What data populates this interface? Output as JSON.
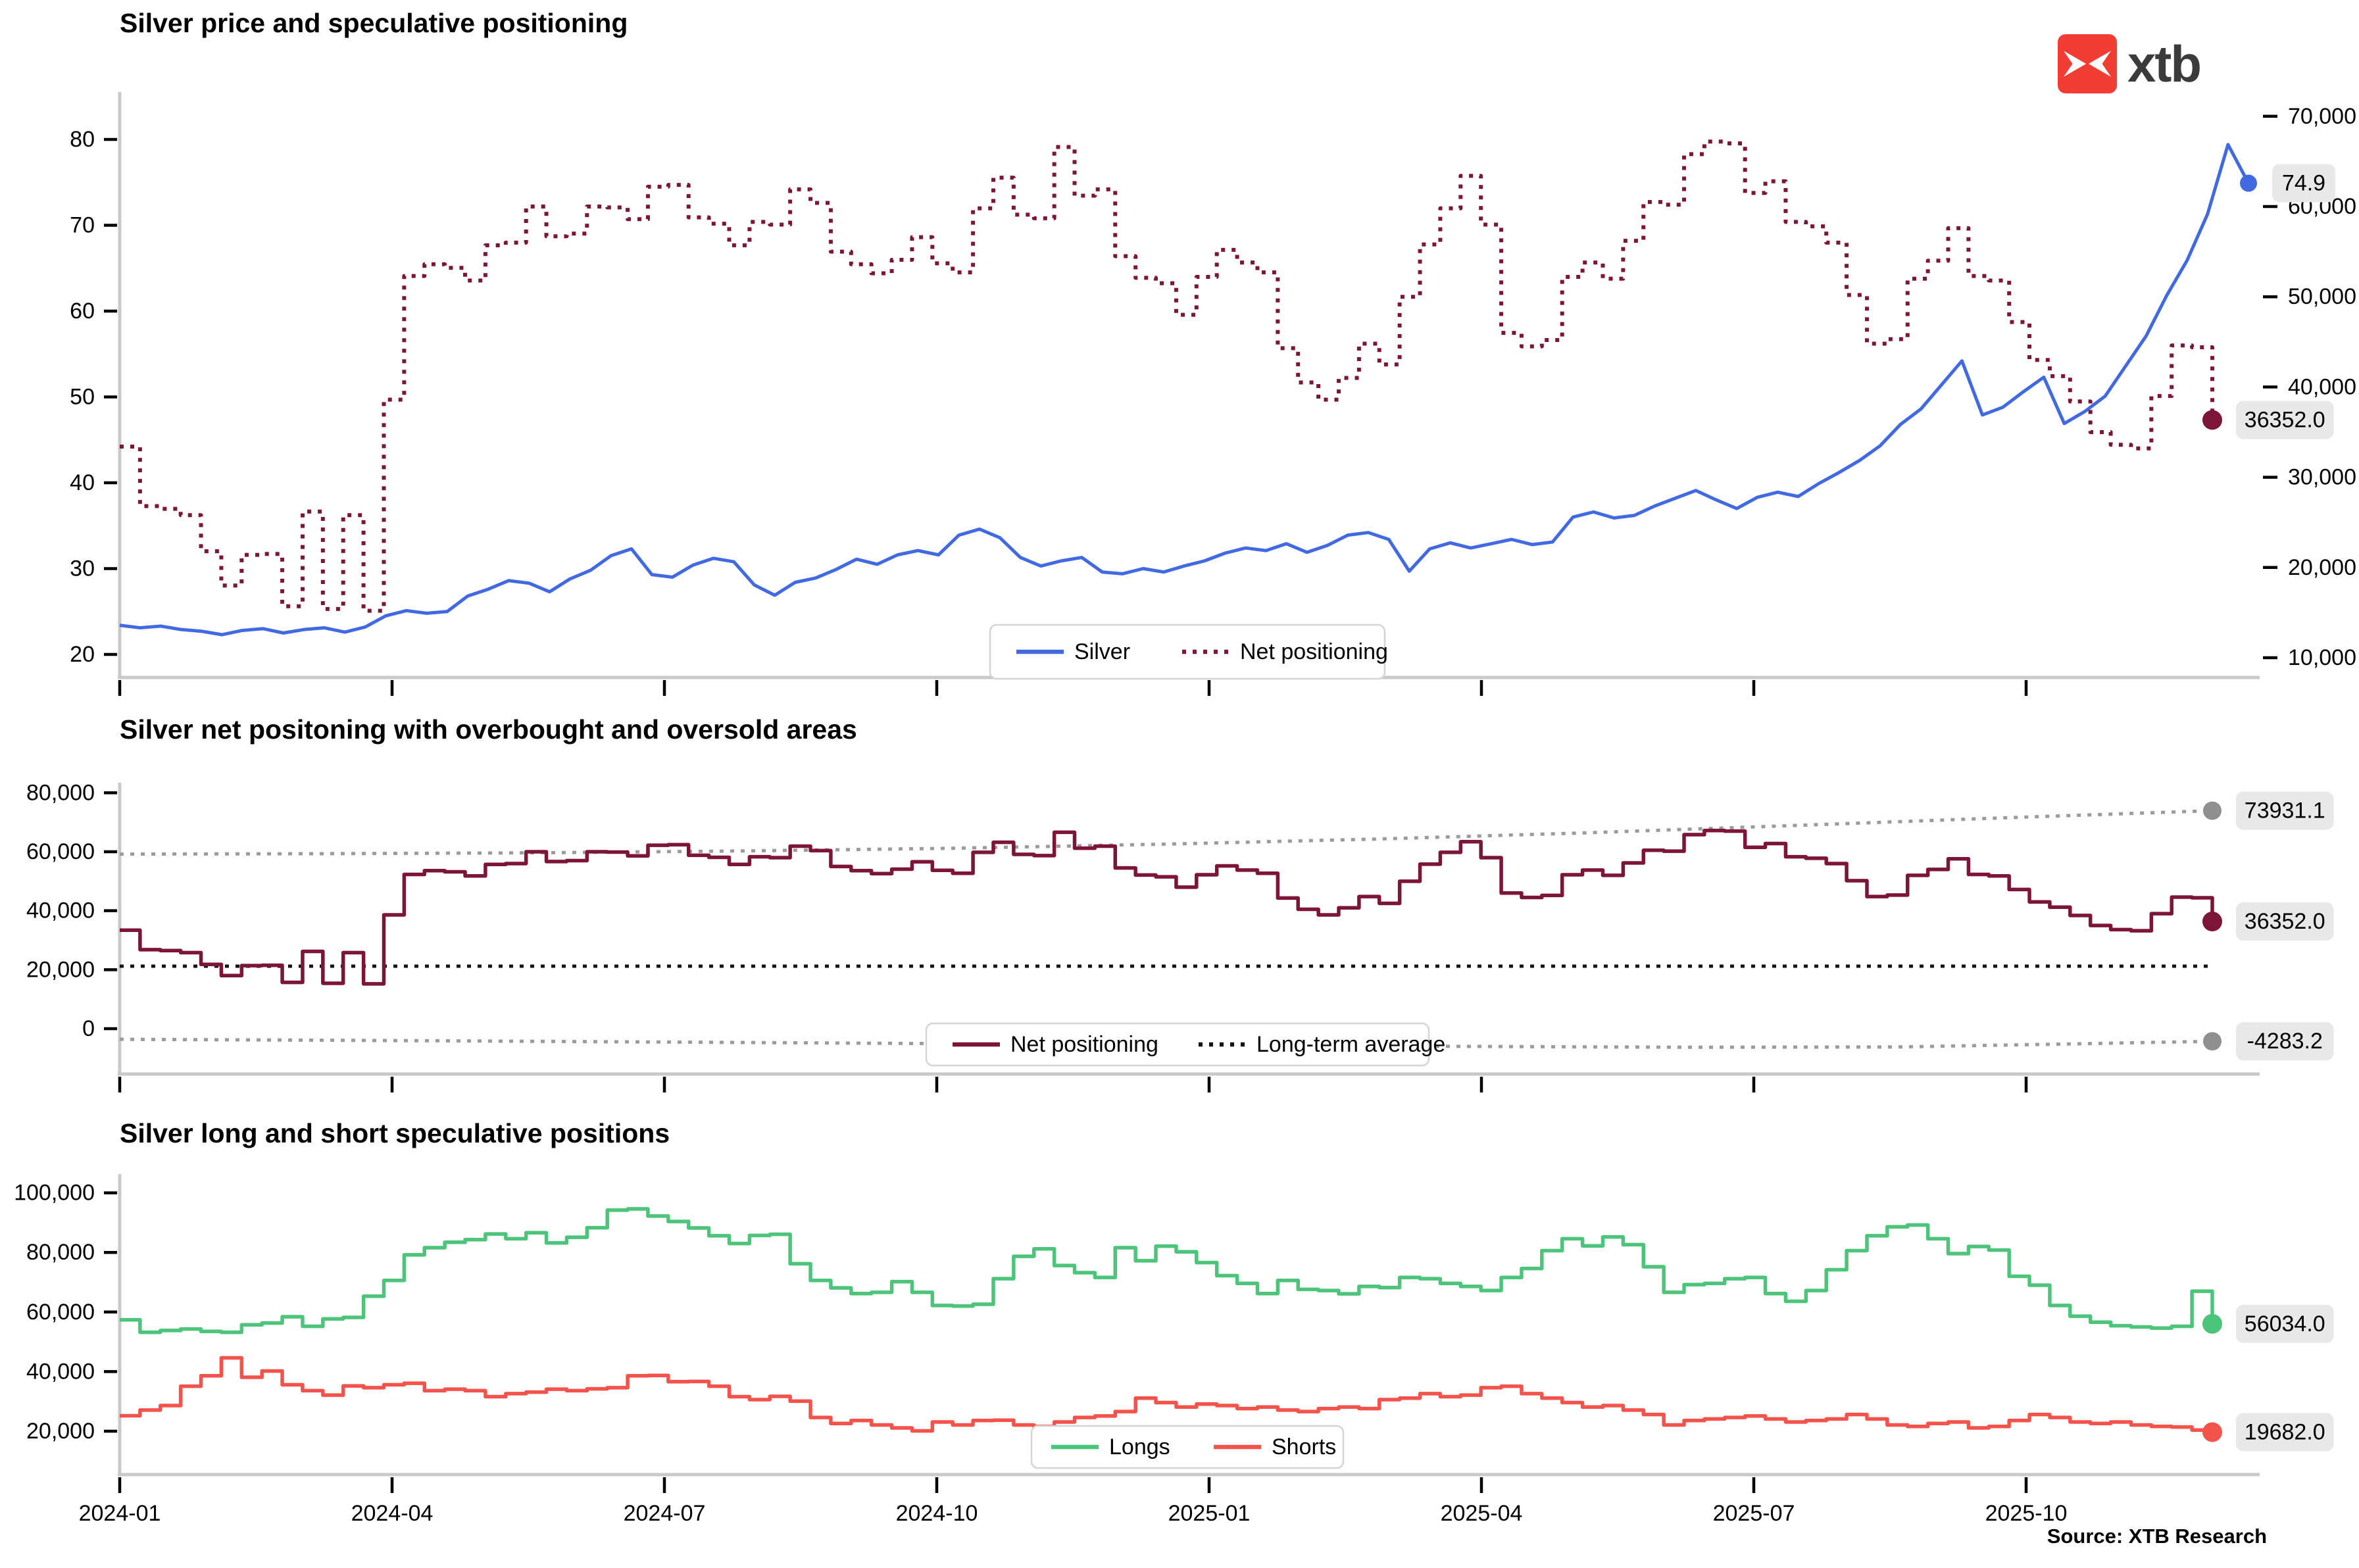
{
  "logo": {
    "text": "xtb",
    "box_color": "#f23d34",
    "glyph": "x-cross",
    "text_color": "#3b3b3b"
  },
  "source": "Source: XTB Research",
  "x_axis": {
    "tick_labels": [
      "2024-01",
      "2024-04",
      "2024-07",
      "2024-10",
      "2025-01",
      "2025-04",
      "2025-07",
      "2025-10"
    ]
  },
  "style": {
    "axis_color": "#c9c9c9",
    "tick_color": "#000000",
    "badge_bg": "#e8e8e8",
    "legend_border": "#d5d5d5"
  },
  "chart_data": [
    {
      "type": "line",
      "title": "Silver price and speculative positioning",
      "x_start": "2024-01",
      "x_end": "2025-12",
      "x_unit": "week",
      "grid": false,
      "left_axis": {
        "tick_labels": [
          "80",
          "70",
          "60",
          "50",
          "40",
          "30",
          "20"
        ],
        "tick_values": [
          80,
          70,
          60,
          50,
          40,
          30,
          20
        ],
        "ylim": [
          17,
          85
        ]
      },
      "right_axis": {
        "tick_labels": [
          "70,000",
          "60,000",
          "50,000",
          "40,000",
          "30,000",
          "20,000",
          "10,000"
        ],
        "tick_values": [
          70000,
          60000,
          50000,
          40000,
          30000,
          20000,
          10000
        ],
        "ylim": [
          7800,
          71500
        ]
      },
      "legend": {
        "position": "bottom-center",
        "entries": [
          {
            "label": "Silver",
            "color": "#4169e1",
            "style": "solid"
          },
          {
            "label": "Net positioning",
            "color": "#7c1538",
            "style": "dotted"
          }
        ]
      },
      "series": [
        {
          "name": "Silver",
          "axis": "left",
          "color": "#4169e1",
          "style": "solid",
          "step": false,
          "width": 5,
          "span": 1.0,
          "end_label": "74.9",
          "end_dot_color": "#4169e1",
          "dot_r": 13,
          "values": [
            23.4,
            23.1,
            23.3,
            22.9,
            22.7,
            22.3,
            22.8,
            23.0,
            22.5,
            22.9,
            23.1,
            22.6,
            23.2,
            24.5,
            25.1,
            24.8,
            25.0,
            26.8,
            27.6,
            28.6,
            28.3,
            27.3,
            28.8,
            29.8,
            31.5,
            32.3,
            29.3,
            29.0,
            30.4,
            31.2,
            30.8,
            28.1,
            26.9,
            28.4,
            28.9,
            29.9,
            31.1,
            30.5,
            31.6,
            32.1,
            31.6,
            33.9,
            34.6,
            33.6,
            31.3,
            30.3,
            30.9,
            31.3,
            29.6,
            29.4,
            30.0,
            29.6,
            30.3,
            30.9,
            31.8,
            32.4,
            32.1,
            32.9,
            31.9,
            32.7,
            33.9,
            34.2,
            33.4,
            29.7,
            32.3,
            33.0,
            32.4,
            32.9,
            33.4,
            32.8,
            33.1,
            36.0,
            36.6,
            35.9,
            36.2,
            37.3,
            38.2,
            39.1,
            38.0,
            37.0,
            38.3,
            38.9,
            38.4,
            39.9,
            41.2,
            42.6,
            44.3,
            46.8,
            48.6,
            51.4,
            54.2,
            47.9,
            48.8,
            50.6,
            52.3,
            46.9,
            48.3,
            50.1,
            53.6,
            57.1,
            61.8,
            65.9,
            71.3,
            79.4,
            74.9
          ]
        },
        {
          "name": "Net positioning",
          "axis": "right",
          "color": "#7c1538",
          "style": "dotted",
          "step": true,
          "width": 6,
          "span": 0.983,
          "end_label": "36352.0",
          "end_dot_color": "#7c1538",
          "dot_r": 15,
          "values": [
            33400,
            26800,
            26500,
            25800,
            21800,
            18000,
            21400,
            21500,
            15700,
            26200,
            15400,
            25800,
            15200,
            38600,
            52300,
            53600,
            53200,
            51800,
            55700,
            56000,
            60000,
            56700,
            57000,
            60000,
            59900,
            58600,
            62200,
            62400,
            58800,
            58100,
            55700,
            58300,
            58000,
            61900,
            60400,
            55000,
            53600,
            52600,
            54100,
            56600,
            53700,
            52700,
            59800,
            63200,
            59100,
            58700,
            66600,
            61200,
            61900,
            54500,
            52100,
            51500,
            48000,
            52200,
            55200,
            53800,
            52700,
            44300,
            40500,
            38600,
            41000,
            44800,
            42500,
            50000,
            55800,
            59800,
            63400,
            58000,
            46000,
            44500,
            45200,
            52200,
            53800,
            52000,
            56200,
            60500,
            60200,
            65800,
            67200,
            67000,
            61500,
            62800,
            58300,
            57800,
            56000,
            50200,
            44800,
            45300,
            52000,
            54000,
            57600,
            52300,
            51800,
            47200,
            43000,
            41200,
            38400,
            35000,
            33600,
            33200,
            39000,
            44600,
            44400,
            36352
          ]
        }
      ]
    },
    {
      "type": "line",
      "title": "Silver net positoning with overbought and oversold areas",
      "x_start": "2024-01",
      "x_end": "2025-12",
      "x_unit": "week",
      "grid": false,
      "left_axis": {
        "tick_labels": [
          "80,000",
          "60,000",
          "40,000",
          "20,000",
          "0"
        ],
        "tick_values": [
          80000,
          60000,
          40000,
          20000,
          0
        ],
        "ylim": [
          -15000,
          83000
        ]
      },
      "legend": {
        "position": "bottom-center",
        "entries": [
          {
            "label": "Net positioning",
            "color": "#7c1538",
            "style": "solid"
          },
          {
            "label": "Long-term average",
            "color": "#141414",
            "style": "dotted"
          }
        ]
      },
      "series": [
        {
          "name": "Overbought level",
          "axis": "left",
          "color": "#9b9b9b",
          "style": "dotted",
          "step": false,
          "width": 5,
          "span": 0.983,
          "end_label": "73931.1",
          "end_dot_color": "#8f8f8f",
          "dot_r": 14,
          "x": [
            0,
            0.1,
            0.2,
            0.3,
            0.4,
            0.5,
            0.6,
            0.7,
            0.8,
            0.9,
            1
          ],
          "values": [
            59200,
            59350,
            59650,
            60300,
            61200,
            62600,
            64300,
            66400,
            68900,
            71500,
            73931.1
          ]
        },
        {
          "name": "Oversold level",
          "axis": "left",
          "color": "#9b9b9b",
          "style": "dotted",
          "step": false,
          "width": 5,
          "span": 0.983,
          "end_label": "-4283.2",
          "end_dot_color": "#8f8f8f",
          "dot_r": 14,
          "x": [
            0,
            0.15,
            0.3,
            0.45,
            0.6,
            0.75,
            0.85,
            0.93,
            1
          ],
          "values": [
            -3600,
            -4100,
            -4700,
            -5300,
            -5900,
            -6300,
            -6200,
            -5200,
            -4283.2
          ]
        },
        {
          "name": "Long-term average",
          "axis": "left",
          "color": "#141414",
          "style": "dotted",
          "step": false,
          "width": 5,
          "span": 0.983,
          "x": [
            0,
            1
          ],
          "values": [
            21200,
            21200
          ]
        },
        {
          "name": "Net positioning",
          "axis": "left",
          "color": "#7c1538",
          "style": "solid",
          "step": true,
          "width": 5.5,
          "span": 0.983,
          "end_label": "36352.0",
          "end_dot_color": "#7c1538",
          "dot_r": 15,
          "values": [
            33400,
            26800,
            26500,
            25800,
            21800,
            18000,
            21400,
            21500,
            15700,
            26200,
            15400,
            25800,
            15200,
            38600,
            52300,
            53600,
            53200,
            51800,
            55700,
            56000,
            60000,
            56700,
            57000,
            60000,
            59900,
            58600,
            62200,
            62400,
            58800,
            58100,
            55700,
            58300,
            58000,
            61900,
            60400,
            55000,
            53600,
            52600,
            54100,
            56600,
            53700,
            52700,
            59800,
            63200,
            59100,
            58700,
            66600,
            61200,
            61900,
            54500,
            52100,
            51500,
            48000,
            52200,
            55200,
            53800,
            52700,
            44300,
            40500,
            38600,
            41000,
            44800,
            42500,
            50000,
            55800,
            59800,
            63400,
            58000,
            46000,
            44500,
            45200,
            52200,
            53800,
            52000,
            56200,
            60500,
            60200,
            65800,
            67200,
            67000,
            61500,
            62800,
            58300,
            57800,
            56000,
            50200,
            44800,
            45300,
            52000,
            54000,
            57600,
            52300,
            51800,
            47200,
            43000,
            41200,
            38400,
            35000,
            33600,
            33200,
            39000,
            44600,
            44400,
            36352
          ]
        }
      ]
    },
    {
      "type": "line",
      "title": "Silver long and short speculative positions",
      "x_start": "2024-01",
      "x_end": "2025-12",
      "x_unit": "week",
      "grid": false,
      "left_axis": {
        "tick_labels": [
          "100,000",
          "80,000",
          "60,000",
          "40,000",
          "20,000"
        ],
        "tick_values": [
          100000,
          80000,
          60000,
          40000,
          20000
        ],
        "ylim": [
          5000,
          106000
        ]
      },
      "legend": {
        "position": "bottom-right",
        "entries": [
          {
            "label": "Longs",
            "color": "#4cc479",
            "style": "solid"
          },
          {
            "label": "Shorts",
            "color": "#f4534b",
            "style": "solid"
          }
        ]
      },
      "series": [
        {
          "name": "Longs",
          "axis": "left",
          "color": "#4cc479",
          "style": "solid",
          "step": true,
          "width": 5.5,
          "span": 0.983,
          "end_label": "56034.0",
          "end_dot_color": "#4cc479",
          "dot_r": 15,
          "values": [
            57400,
            53200,
            53800,
            54300,
            53500,
            53200,
            55700,
            56300,
            58400,
            55200,
            57700,
            58200,
            65300,
            70600,
            79200,
            81600,
            83400,
            84300,
            86200,
            84600,
            86600,
            83200,
            85100,
            88300,
            94200,
            94600,
            92200,
            90400,
            88200,
            85600,
            83000,
            85700,
            86100,
            76200,
            70600,
            68100,
            66200,
            66600,
            70200,
            66600,
            62200,
            62000,
            62600,
            71200,
            78700,
            81200,
            75600,
            73200,
            71600,
            81600,
            77200,
            82100,
            80200,
            76600,
            72200,
            69600,
            66200,
            70600,
            67600,
            67200,
            66100,
            68600,
            68200,
            71600,
            71200,
            69600,
            68600,
            67200,
            71600,
            74600,
            80600,
            84600,
            82200,
            85200,
            82600,
            75200,
            66600,
            69200,
            69600,
            71200,
            71600,
            66200,
            63600,
            67200,
            74200,
            80600,
            85600,
            88600,
            89200,
            84600,
            79600,
            82000,
            80800,
            72000,
            69000,
            62200,
            58600,
            56600,
            55400,
            55000,
            54600,
            55200,
            67000,
            56034
          ]
        },
        {
          "name": "Shorts",
          "axis": "left",
          "color": "#f4534b",
          "style": "solid",
          "step": true,
          "width": 5.5,
          "span": 0.983,
          "end_label": "19682.0",
          "end_dot_color": "#f4534b",
          "dot_r": 15,
          "values": [
            25200,
            27100,
            28600,
            35100,
            38600,
            44600,
            38100,
            40200,
            35600,
            33600,
            32100,
            35200,
            34600,
            35600,
            36100,
            33600,
            34100,
            33600,
            31600,
            32600,
            33100,
            34100,
            33600,
            34200,
            34600,
            38600,
            38700,
            36600,
            36700,
            35100,
            31600,
            30600,
            31700,
            30100,
            24600,
            22600,
            23600,
            22100,
            21100,
            20100,
            23100,
            22100,
            23600,
            23700,
            22100,
            21600,
            23100,
            24600,
            25100,
            26600,
            31100,
            29600,
            28100,
            29100,
            28600,
            27600,
            28100,
            27100,
            26600,
            27600,
            28100,
            27600,
            30600,
            31100,
            32600,
            31600,
            32100,
            34600,
            35100,
            32600,
            31100,
            29600,
            28100,
            28600,
            27100,
            25600,
            22100,
            23600,
            24100,
            24600,
            25100,
            24100,
            23100,
            23600,
            24100,
            25600,
            24100,
            22100,
            21600,
            22600,
            23100,
            21100,
            21600,
            23600,
            25600,
            24600,
            23100,
            22600,
            23100,
            22100,
            21600,
            21400,
            20400,
            19682
          ]
        }
      ]
    }
  ]
}
